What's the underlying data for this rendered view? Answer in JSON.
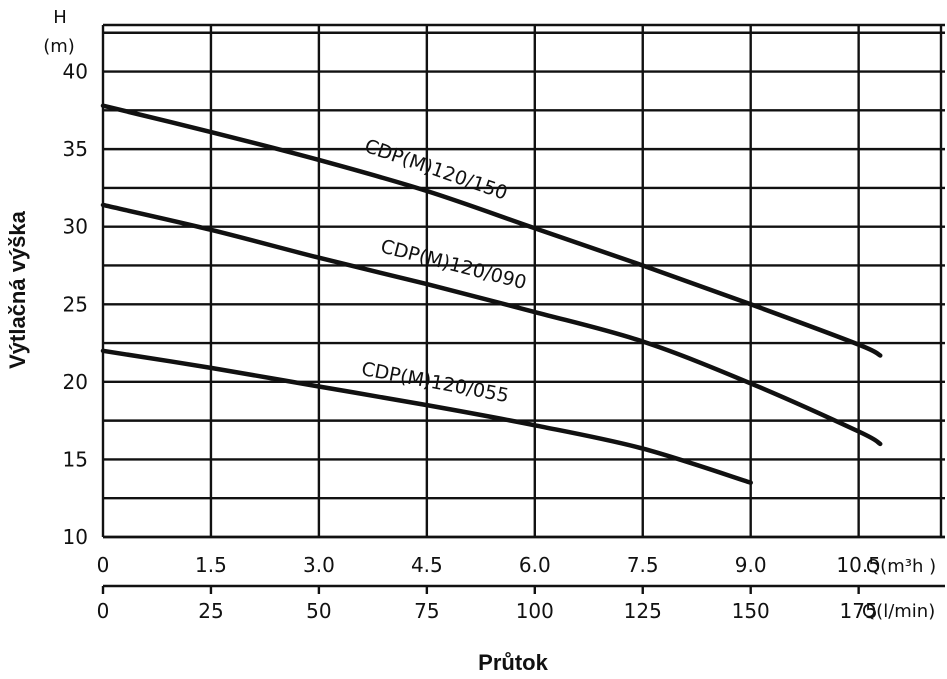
{
  "chart_data": {
    "type": "line",
    "title": "",
    "ylabel": "Výtlačná výška",
    "xlabel": "Průtok",
    "y_unit_top": "H",
    "y_unit_bottom": "(m)",
    "x_unit_m3h": "Q(m³h )",
    "x_unit_lmin": "Q(l/min)",
    "ylim": [
      10,
      43
    ],
    "xlim_m3h": [
      0,
      11.7
    ],
    "y_ticks": [
      "10",
      "15",
      "20",
      "25",
      "30",
      "35",
      "40"
    ],
    "x_ticks_m3h": [
      "0",
      "1.5",
      "3.0",
      "4.5",
      "6.0",
      "7.5",
      "9.0",
      "10.5"
    ],
    "x_ticks_lmin": [
      "0",
      "25",
      "50",
      "75",
      "100",
      "125",
      "150",
      "175"
    ],
    "grid": true,
    "series": [
      {
        "name": "CDP(M)120/150",
        "x": [
          0,
          1.5,
          3.0,
          4.5,
          6.0,
          7.5,
          9.0,
          10.5,
          10.8
        ],
        "y": [
          37.8,
          36.1,
          34.3,
          32.3,
          29.9,
          27.5,
          25.0,
          22.4,
          21.7
        ]
      },
      {
        "name": "CDP(M)120/090",
        "x": [
          0,
          1.5,
          3.0,
          4.5,
          6.0,
          7.5,
          9.0,
          10.5,
          10.8
        ],
        "y": [
          31.4,
          29.8,
          28.0,
          26.3,
          24.5,
          22.6,
          19.9,
          16.8,
          16.0
        ]
      },
      {
        "name": "CDP(M)120/055",
        "x": [
          0,
          1.5,
          3.0,
          4.5,
          6.0,
          7.5,
          9.0
        ],
        "y": [
          22.0,
          20.9,
          19.7,
          18.5,
          17.2,
          15.7,
          13.5
        ]
      }
    ]
  }
}
